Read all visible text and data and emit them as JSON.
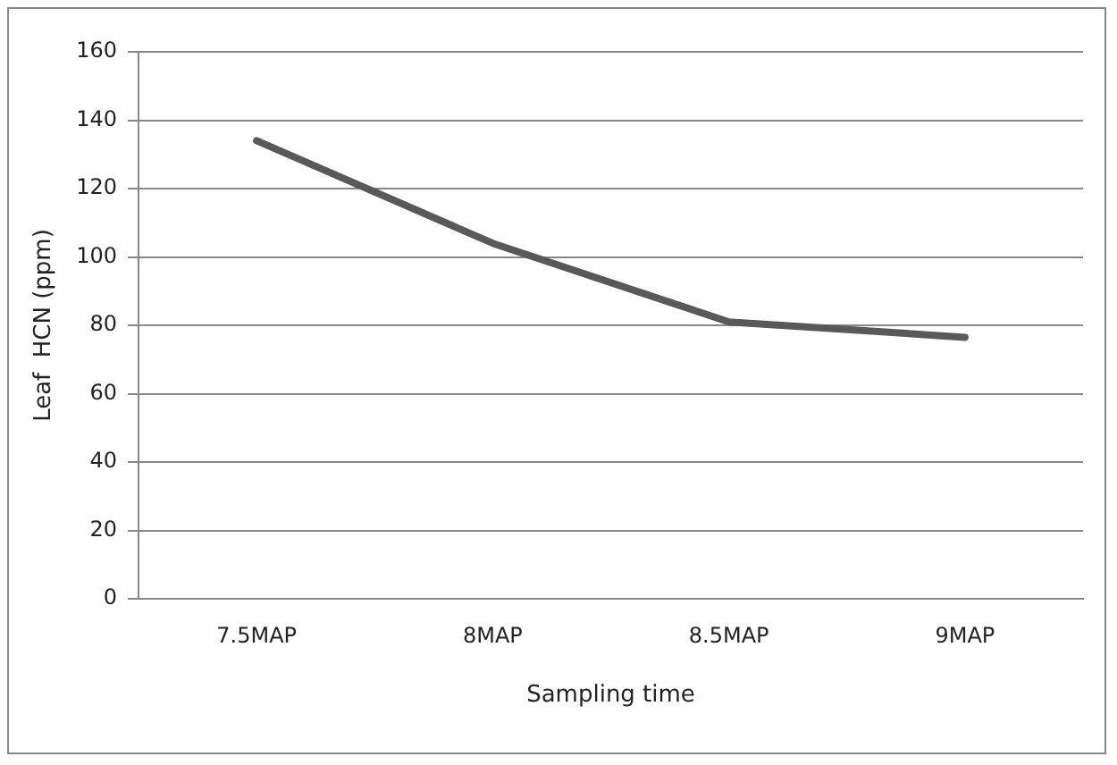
{
  "chart_data": {
    "type": "line",
    "xlabel": "Sampling time",
    "ylabel": "Leaf  HCN (ppm)",
    "categories": [
      "7.5MAP",
      "8MAP",
      "8.5MAP",
      "9MAP"
    ],
    "series": [
      {
        "color": "#595959",
        "values": [
          134,
          104,
          81,
          76.5
        ]
      }
    ],
    "ylim": [
      0,
      160
    ],
    "yticks": [
      0,
      20,
      40,
      60,
      80,
      100,
      120,
      140,
      160
    ],
    "grid": "y",
    "legend": false,
    "marker": "none",
    "line_style": "solid"
  }
}
